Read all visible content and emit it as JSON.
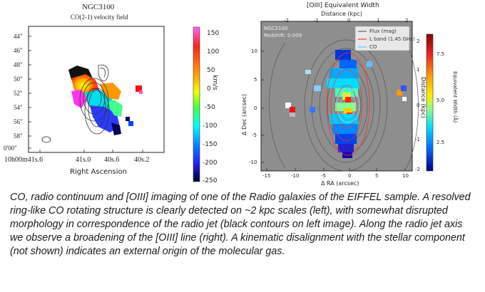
{
  "left_figure": {
    "title": "NGC3100",
    "subtitle": "CO(2-1) velocity field",
    "y_ticks": [
      "44\"",
      "46\"",
      "48\"",
      "50\"",
      "52\"",
      "54\"",
      "56\"",
      "58\"",
      "0'00\""
    ],
    "x_ticks": [
      "10h00m41s.6",
      "41s.0",
      "40s.6",
      "40s.2"
    ],
    "xlabel": "Right Ascension",
    "colorbar_unit": "km/s",
    "colorbar_ticks": [
      "150",
      "100",
      "50",
      "0",
      "-50",
      "-100",
      "-150",
      "-200",
      "-250"
    ],
    "colorbar_colors": [
      "#ff55ff",
      "#ff2222",
      "#ff9900",
      "#eeff00",
      "#44ff44",
      "#00ffff",
      "#0088ff",
      "#2222ff",
      "#000022"
    ]
  },
  "right_figure": {
    "title": "[OIII] Equivalent Width",
    "top_axis_label": "Distance (kpc)",
    "top_ticks": [
      "-2",
      "-1",
      "0",
      "1",
      "2"
    ],
    "x_ticks": [
      "-15",
      "-10",
      "-5",
      "0",
      "5",
      "10"
    ],
    "xlabel": "Δ RA (arcsec)",
    "y_ticks": [
      "10",
      "5",
      "0",
      "-5",
      "-10"
    ],
    "ylabel": "Δ Dec (arcsec)",
    "right_ticks": [
      "2",
      "1",
      "0",
      "-1",
      "-2"
    ],
    "right_axis_label": "Distance (kpc)",
    "inset_name": "NGC3100",
    "inset_redshift": "Redshift: 0.009",
    "legend": [
      {
        "label": "Flux (mag)",
        "color": "#666666"
      },
      {
        "label": "L band (1.45 GHz)",
        "color": "#ff3333"
      },
      {
        "label": "CO",
        "color": "#66ccff"
      }
    ],
    "colorbar_label": "Equivalent Width (Å)",
    "colorbar_ticks": [
      "7.5",
      "5.0",
      "2.5"
    ],
    "colorbar_colors": [
      "#880000",
      "#ee2222",
      "#ff9900",
      "#ffee00",
      "#88ff88",
      "#00ddff",
      "#0066ff",
      "#000088"
    ]
  },
  "caption": "CO, radio continuum and [OIII] imaging of one of the Radio galaxies of the EIFFEL sample. A resolved ring-like CO rotating structure is clearly detected on ~2 kpc scales (left), with somewhat disrupted morphology in correspondence of the radio jet (black contours on left image). Along the radio jet axis we observe a broadening of the [OIII] line (right). A kinematic disalignment with the stellar component (not shown) indicates an external origin of the molecular gas."
}
